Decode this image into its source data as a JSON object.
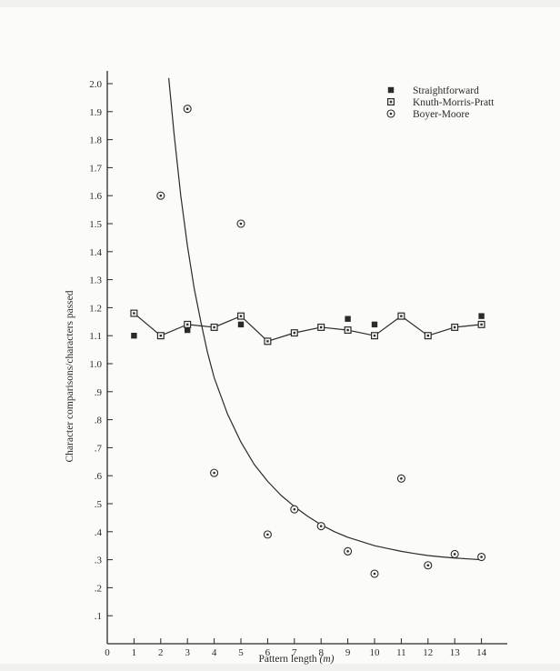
{
  "chart_data": {
    "type": "scatter",
    "title": "",
    "xlabel_text": "Pattern length",
    "xlabel_var": "(m)",
    "ylabel": "Character comparisons/characters passed",
    "xlim": [
      0,
      15
    ],
    "ylim": [
      0,
      2.1
    ],
    "x_ticks": [
      0,
      1,
      2,
      3,
      4,
      5,
      6,
      7,
      8,
      9,
      10,
      11,
      12,
      13,
      14
    ],
    "x_tick_labels": [
      "0",
      "1",
      "2",
      "3",
      "4",
      "5",
      "6",
      "7",
      "8",
      "9",
      "10",
      "11",
      "12",
      "13",
      "14"
    ],
    "y_ticks": [
      0.1,
      0.2,
      0.3,
      0.4,
      0.5,
      0.6,
      0.7,
      0.8,
      0.9,
      1.0,
      1.1,
      1.2,
      1.3,
      1.4,
      1.5,
      1.6,
      1.7,
      1.8,
      1.9,
      2.0
    ],
    "y_tick_labels": [
      ".1",
      ".2",
      ".3",
      ".4",
      ".5",
      ".6",
      ".7",
      ".8",
      ".9",
      "1.0",
      "1.1",
      "1.2",
      "1.3",
      "1.4",
      "1.5",
      "1.6",
      "1.7",
      "1.8",
      "1.9",
      "2.0"
    ],
    "grid": false,
    "legend_position": "top-right",
    "series": [
      {
        "name": "Straightforward",
        "marker": "filled-square",
        "x": [
          1,
          2,
          3,
          4,
          5,
          6,
          7,
          8,
          9,
          10,
          11,
          12,
          13,
          14
        ],
        "y": [
          1.1,
          1.1,
          1.12,
          1.13,
          1.14,
          1.08,
          1.11,
          1.13,
          1.16,
          1.14,
          1.17,
          1.1,
          1.13,
          1.17
        ]
      },
      {
        "name": "Knuth-Morris-Pratt",
        "marker": "open-square-dot",
        "x": [
          1,
          2,
          3,
          4,
          5,
          6,
          7,
          8,
          9,
          10,
          11,
          12,
          13,
          14
        ],
        "y": [
          1.18,
          1.1,
          1.14,
          1.13,
          1.17,
          1.08,
          1.11,
          1.13,
          1.12,
          1.1,
          1.17,
          1.1,
          1.13,
          1.14
        ]
      },
      {
        "name": "Boyer-Moore",
        "marker": "circle-dot",
        "x": [
          2,
          3,
          4,
          5,
          6,
          7,
          8,
          9,
          10,
          11,
          12,
          13,
          14
        ],
        "y": [
          1.6,
          1.91,
          0.61,
          1.5,
          0.39,
          0.48,
          0.42,
          0.33,
          0.25,
          0.59,
          0.28,
          0.32,
          0.31
        ]
      }
    ],
    "boyer_moore_curve": {
      "x": [
        2.3,
        2.5,
        2.75,
        3,
        3.25,
        3.5,
        3.75,
        4,
        4.5,
        5,
        5.5,
        6,
        6.5,
        7,
        7.5,
        8,
        8.5,
        9,
        9.5,
        10,
        10.5,
        11,
        11.5,
        12,
        12.5,
        13,
        13.5,
        14
      ],
      "y": [
        2.02,
        1.82,
        1.6,
        1.42,
        1.27,
        1.15,
        1.04,
        0.95,
        0.82,
        0.72,
        0.64,
        0.58,
        0.53,
        0.49,
        0.455,
        0.425,
        0.4,
        0.38,
        0.365,
        0.35,
        0.34,
        0.33,
        0.322,
        0.315,
        0.31,
        0.306,
        0.303,
        0.3
      ]
    }
  }
}
